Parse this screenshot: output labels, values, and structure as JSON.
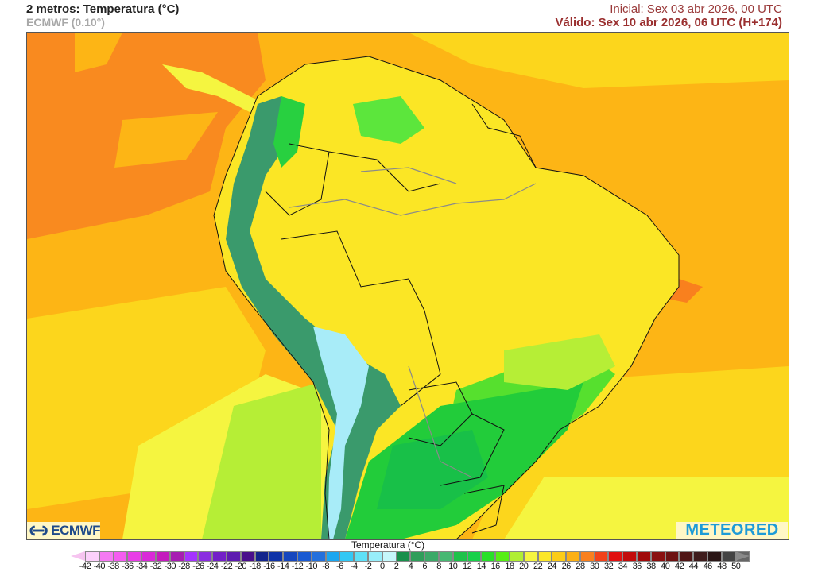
{
  "header": {
    "title": "2 metros: Temperatura (°C)",
    "model": "ECMWF (0.10°)",
    "initial": "Inicial: Sex 03 abr 2026, 00 UTC",
    "valid": "Válido: Sex 10 abr 2026, 06 UTC (H+174)"
  },
  "logos": {
    "left": "ECMWF",
    "right": "METEORED"
  },
  "legend": {
    "title": "Temperatura (°C)",
    "labels": [
      "-42",
      "-40",
      "-38",
      "-36",
      "-34",
      "-32",
      "-30",
      "-28",
      "-26",
      "-24",
      "-22",
      "-20",
      "-18",
      "-16",
      "-14",
      "-12",
      "-10",
      "-8",
      "-6",
      "-4",
      "-2",
      "0",
      "2",
      "4",
      "6",
      "8",
      "10",
      "12",
      "14",
      "16",
      "18",
      "20",
      "22",
      "24",
      "26",
      "28",
      "30",
      "32",
      "34",
      "36",
      "38",
      "40",
      "42",
      "44",
      "46",
      "48",
      "50"
    ],
    "colors": [
      "#fcd0fb",
      "#f57af3",
      "#f45cf0",
      "#e83ee6",
      "#d92ad8",
      "#c41cbd",
      "#a71db2",
      "#a533ff",
      "#8a2ee0",
      "#7320c8",
      "#5e1bb0",
      "#4a0f8c",
      "#14258c",
      "#0f33a8",
      "#1647be",
      "#1a5ad2",
      "#2470dc",
      "#1ba6f0",
      "#33c8f5",
      "#5ee0f7",
      "#98eefa",
      "#c6f7fb",
      "#19904c",
      "#2f9e5a",
      "#3ca968",
      "#47b872",
      "#1ec24a",
      "#18d04a",
      "#28e028",
      "#56ee14",
      "#b0ee34",
      "#f5f540",
      "#fbe628",
      "#fccc18",
      "#fcb014",
      "#f9801e",
      "#f2421a",
      "#e01010",
      "#c20c0c",
      "#a00a0a",
      "#8a1010",
      "#6e1212",
      "#501616",
      "#3e1c1c",
      "#2a1616",
      "#444444",
      "#666666"
    ],
    "arrow_low_color": "#f6c4f0",
    "arrow_high_color": "#8a8a8a"
  },
  "map": {
    "region": "South America",
    "variable": "2 m temperature",
    "colors": {
      "ocean_warm": "#fdb515",
      "ocean_hot": "#f98a1f",
      "ocean_mild": "#fcd61c",
      "land_hot": "#fbe625",
      "land_mild": "#b6ee36",
      "land_cool": "#22cc3a",
      "andes_cold": "#3a9a6c",
      "andes_freezing": "#a8ecf8"
    }
  }
}
